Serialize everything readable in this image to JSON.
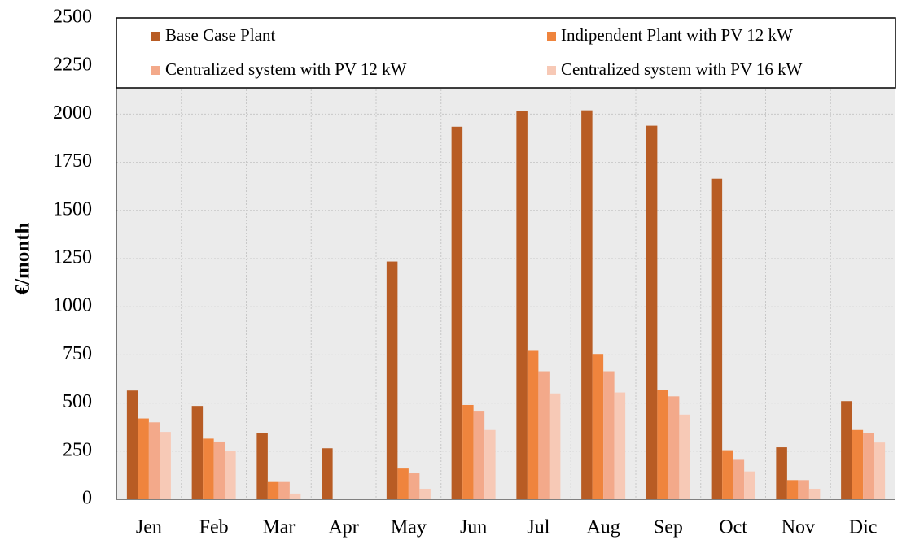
{
  "chart_data": {
    "type": "bar",
    "y_label": "€/month",
    "categories": [
      "Jen",
      "Feb",
      "Mar",
      "Apr",
      "May",
      "Jun",
      "Jul",
      "Aug",
      "Sep",
      "Oct",
      "Nov",
      "Dic"
    ],
    "series": [
      {
        "name": "Base Case Plant",
        "color": "#b85c24",
        "values": [
          565,
          485,
          345,
          265,
          1235,
          1935,
          2015,
          2020,
          1940,
          1665,
          270,
          510
        ]
      },
      {
        "name": "Indipendent Plant with PV 12 kW",
        "color": "#ef843d",
        "values": [
          420,
          315,
          90,
          0,
          160,
          490,
          775,
          755,
          570,
          255,
          100,
          360
        ]
      },
      {
        "name": "Centralized system with PV 12 kW",
        "color": "#f3a98a",
        "values": [
          400,
          300,
          90,
          0,
          135,
          460,
          665,
          665,
          535,
          205,
          100,
          345
        ]
      },
      {
        "name": "Centralized system with PV 16 kW",
        "color": "#f7c9b6",
        "values": [
          350,
          250,
          30,
          0,
          55,
          360,
          550,
          555,
          440,
          145,
          55,
          295
        ]
      }
    ],
    "ylim": [
      0,
      2500
    ],
    "yticks": [
      0,
      250,
      500,
      750,
      1000,
      1250,
      1500,
      1750,
      2000,
      2250,
      2500
    ],
    "grid": true,
    "legend": "top"
  }
}
